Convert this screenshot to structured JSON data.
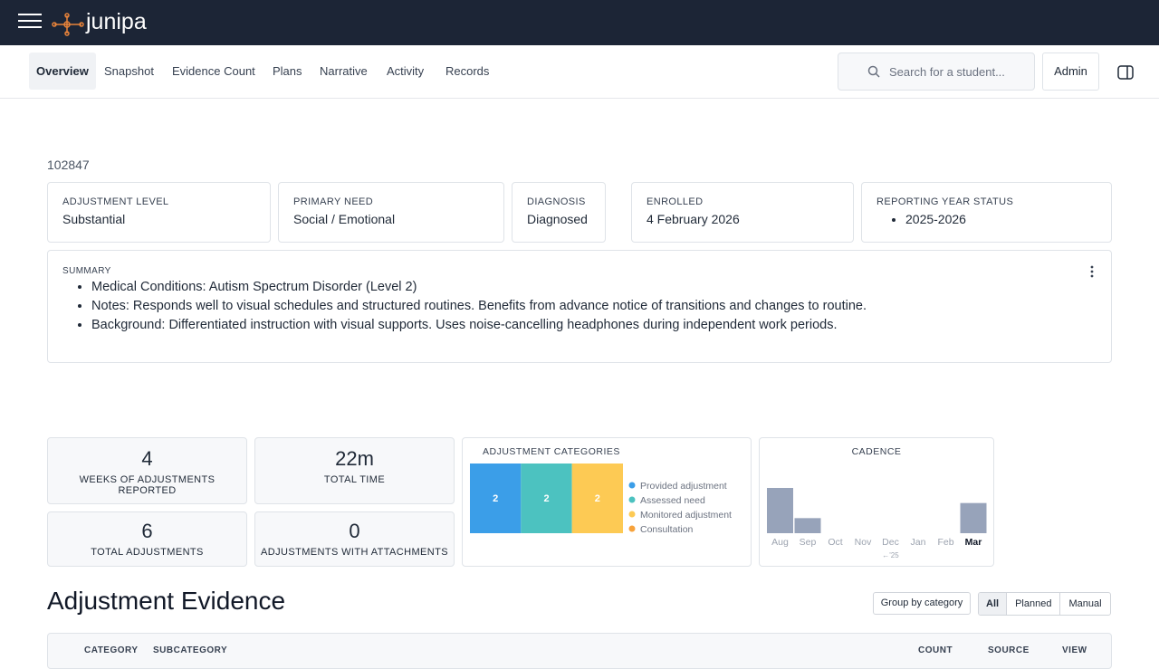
{
  "header": {
    "brand": "junipa"
  },
  "nav": {
    "tabs": [
      "Overview",
      "Snapshot",
      "Evidence Count",
      "Plans",
      "Narrative",
      "Activity",
      "Records"
    ],
    "search_placeholder": "Search for a student...",
    "user_button": "Admin"
  },
  "student_id": "102847",
  "info_cards": [
    {
      "label": "ADJUSTMENT LEVEL",
      "value": "Substantial"
    },
    {
      "label": "PRIMARY NEED",
      "value": "Social / Emotional"
    },
    {
      "label": "DIAGNOSIS",
      "value": "Diagnosed"
    },
    {
      "label": "ENROLLED",
      "value": "4 February 2026"
    },
    {
      "label": "REPORTING YEAR STATUS",
      "items": [
        "2025-2026"
      ]
    }
  ],
  "summary": {
    "label": "SUMMARY",
    "items": [
      "Medical Conditions: Autism Spectrum Disorder (Level 2)",
      "Notes: Responds well to visual schedules and structured routines. Benefits from advance notice of transitions and changes to routine.",
      "Background: Differentiated instruction with visual supports. Uses noise-cancelling headphones during independent work periods."
    ]
  },
  "stats": [
    {
      "value": 4,
      "label": "WEEKS OF ADJUSTMENTS REPORTED"
    },
    {
      "value": "22m",
      "label": "TOTAL TIME"
    },
    {
      "value": 6,
      "label": "TOTAL ADJUSTMENTS"
    },
    {
      "value": 0,
      "label": "ADJUSTMENTS WITH ATTACHMENTS"
    }
  ],
  "chart_data": [
    {
      "type": "proportion",
      "title": "ADJUSTMENT CATEGORIES",
      "series": [
        {
          "name": "Provided adjustment",
          "color": "#3b9ee8",
          "values": [
            2
          ]
        },
        {
          "name": "Assessed need",
          "color": "#4cc2c0",
          "values": [
            2
          ]
        },
        {
          "name": "Monitored adjustment",
          "color": "#fdca54",
          "values": [
            2
          ]
        },
        {
          "name": "Consultation",
          "color": "#f7a23b",
          "values": [
            0
          ]
        }
      ]
    },
    {
      "type": "bar",
      "title": "CADENCE",
      "categories": [
        "Aug",
        "Sep",
        "Oct",
        "Nov",
        "Dec",
        "Jan",
        "Feb",
        "Mar"
      ],
      "values": [
        3,
        1,
        0,
        0,
        0,
        0,
        0,
        2
      ],
      "color": "#97a3ba",
      "ylim": [
        0,
        3
      ],
      "annotation": {
        "text": "←'25",
        "x": "Dec"
      }
    }
  ],
  "evidence": {
    "title": "Adjustment Evidence",
    "group_button": "Group by category",
    "filters": [
      "All",
      "Planned",
      "Manual"
    ],
    "columns": [
      "CATEGORY",
      "SUBCATEGORY",
      "COUNT",
      "SOURCE",
      "VIEW"
    ]
  }
}
